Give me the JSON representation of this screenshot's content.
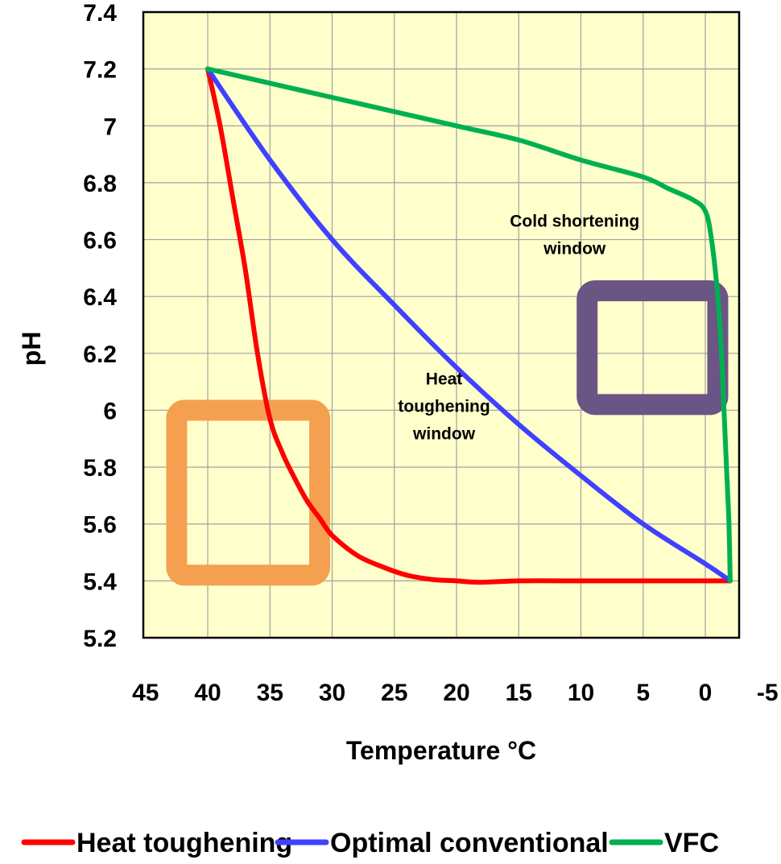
{
  "chart_data": {
    "type": "line",
    "xlabel": "Temperature °C",
    "ylabel": "pH",
    "xlim": [
      45,
      -5
    ],
    "ylim": [
      5.2,
      7.4
    ],
    "x_reversed": true,
    "grid": true,
    "x_ticks": [
      45,
      40,
      35,
      30,
      25,
      20,
      15,
      10,
      5,
      0,
      -5
    ],
    "y_ticks": [
      5.2,
      5.4,
      5.6,
      5.8,
      6,
      6.2,
      6.4,
      6.6,
      6.8,
      7,
      7.2,
      7.4
    ],
    "x_tick_labels": [
      "45",
      "40",
      "35",
      "30",
      "25",
      "20",
      "15",
      "10",
      "5",
      "0",
      "-5"
    ],
    "y_tick_labels": [
      "5.2",
      "5.4",
      "5.6",
      "5.8",
      "6",
      "6.2",
      "6.4",
      "6.6",
      "6.8",
      "7",
      "7.2",
      "7.4"
    ],
    "legend_position": "bottom",
    "colors": {
      "plot_background": "#ffffcc",
      "grid": "#a0a0a0"
    },
    "series": [
      {
        "name": "Heat toughening",
        "color": "#ff0000",
        "x": [
          40,
          39,
          38,
          37,
          36,
          35,
          34,
          33,
          32,
          31,
          30,
          28,
          26,
          24,
          22,
          20,
          18,
          15,
          10,
          5,
          0,
          -2
        ],
        "y": [
          7.2,
          7.0,
          6.75,
          6.5,
          6.2,
          5.97,
          5.85,
          5.76,
          5.68,
          5.62,
          5.56,
          5.49,
          5.45,
          5.42,
          5.405,
          5.4,
          5.395,
          5.4,
          5.4,
          5.4,
          5.4,
          5.4
        ]
      },
      {
        "name": "Optimal conventional",
        "color": "#4040ff",
        "x": [
          40,
          35,
          30,
          25,
          20,
          15,
          10,
          5,
          0,
          -2
        ],
        "y": [
          7.2,
          6.88,
          6.6,
          6.37,
          6.15,
          5.95,
          5.77,
          5.6,
          5.46,
          5.4
        ]
      },
      {
        "name": "VFC",
        "color": "#00b050",
        "x": [
          40,
          30,
          20,
          15,
          10,
          5,
          3,
          1,
          0,
          -0.5,
          -1,
          -1.3,
          -1.5,
          -1.7,
          -1.9,
          -2
        ],
        "y": [
          7.2,
          7.1,
          7.0,
          6.95,
          6.88,
          6.82,
          6.78,
          6.74,
          6.7,
          6.6,
          6.4,
          6.2,
          6.0,
          5.8,
          5.6,
          5.4
        ]
      }
    ],
    "annotations": [
      {
        "lines": [
          "Cold shortening",
          "window"
        ],
        "x": 10.5,
        "y": 6.6
      },
      {
        "lines": [
          "Heat",
          "toughening",
          "window"
        ],
        "x": 21,
        "y": 6.0
      }
    ],
    "windows": [
      {
        "name": "heat-toughening-window",
        "color": "#f5a050",
        "x": [
          42.5,
          31
        ],
        "y": [
          5.42,
          6.0
        ]
      },
      {
        "name": "cold-shortening-window",
        "color": "#6a5585",
        "x": [
          9.5,
          -1
        ],
        "y": [
          6.02,
          6.42
        ]
      }
    ]
  }
}
